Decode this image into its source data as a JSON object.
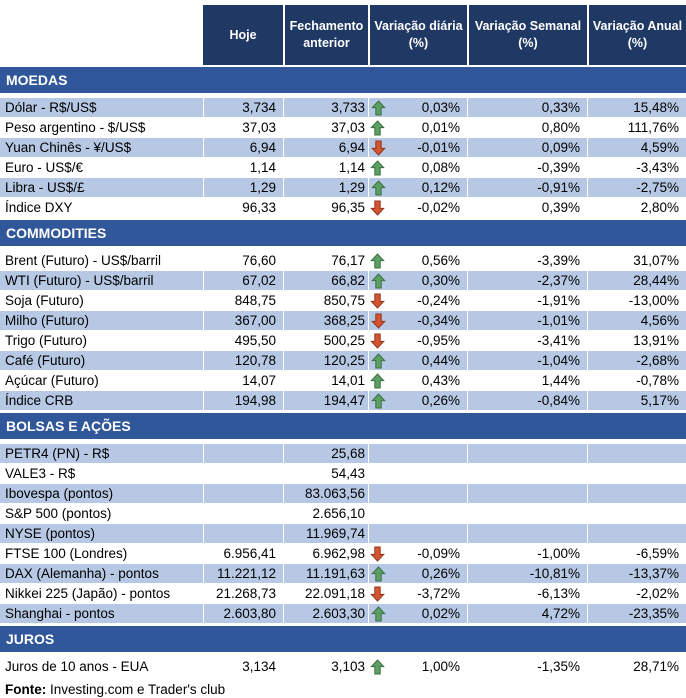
{
  "columns": [
    "Hoje",
    "Fechamento anterior",
    "Variação diária (%)",
    "Variação Semanal (%)",
    "Variação Anual (%)"
  ],
  "sections": [
    {
      "title": "MOEDAS",
      "rows": [
        {
          "label": "Dólar - R$/US$",
          "hoje": "3,734",
          "fech": "3,733",
          "arrow": "up",
          "vd": "0,03%",
          "vs": "0,33%",
          "va": "15,48%",
          "shaded": true
        },
        {
          "label": "Peso argentino - $/US$",
          "hoje": "37,03",
          "fech": "37,03",
          "arrow": "up",
          "vd": "0,01%",
          "vs": "0,80%",
          "va": "111,76%",
          "shaded": false
        },
        {
          "label": "Yuan Chinês - ¥/US$",
          "hoje": "6,94",
          "fech": "6,94",
          "arrow": "down",
          "vd": "-0,01%",
          "vs": "0,09%",
          "va": "4,59%",
          "shaded": true
        },
        {
          "label": "Euro - US$/€",
          "hoje": "1,14",
          "fech": "1,14",
          "arrow": "up",
          "vd": "0,08%",
          "vs": "-0,39%",
          "va": "-3,43%",
          "shaded": false
        },
        {
          "label": "Libra - US$/£",
          "hoje": "1,29",
          "fech": "1,29",
          "arrow": "up",
          "vd": "0,12%",
          "vs": "-0,91%",
          "va": "-2,75%",
          "shaded": true
        },
        {
          "label": "Índice DXY",
          "hoje": "96,33",
          "fech": "96,35",
          "arrow": "down",
          "vd": "-0,02%",
          "vs": "0,39%",
          "va": "2,80%",
          "shaded": false
        }
      ]
    },
    {
      "title": "COMMODITIES",
      "rows": [
        {
          "label": "Brent (Futuro) - US$/barril",
          "hoje": "76,60",
          "fech": "76,17",
          "arrow": "up",
          "vd": "0,56%",
          "vs": "-3,39%",
          "va": "31,07%",
          "shaded": false
        },
        {
          "label": "WTI (Futuro) - US$/barril",
          "hoje": "67,02",
          "fech": "66,82",
          "arrow": "up",
          "vd": "0,30%",
          "vs": "-2,37%",
          "va": "28,44%",
          "shaded": true
        },
        {
          "label": "Soja (Futuro)",
          "hoje": "848,75",
          "fech": "850,75",
          "arrow": "down",
          "vd": "-0,24%",
          "vs": "-1,91%",
          "va": "-13,00%",
          "shaded": false
        },
        {
          "label": "Milho (Futuro)",
          "hoje": "367,00",
          "fech": "368,25",
          "arrow": "down",
          "vd": "-0,34%",
          "vs": "-1,01%",
          "va": "4,56%",
          "shaded": true
        },
        {
          "label": "Trigo (Futuro)",
          "hoje": "495,50",
          "fech": "500,25",
          "arrow": "down",
          "vd": "-0,95%",
          "vs": "-3,41%",
          "va": "13,91%",
          "shaded": false
        },
        {
          "label": "Café (Futuro)",
          "hoje": "120,78",
          "fech": "120,25",
          "arrow": "up",
          "vd": "0,44%",
          "vs": "-1,04%",
          "va": "-2,68%",
          "shaded": true
        },
        {
          "label": "Açúcar (Futuro)",
          "hoje": "14,07",
          "fech": "14,01",
          "arrow": "up",
          "vd": "0,43%",
          "vs": "1,44%",
          "va": "-0,78%",
          "shaded": false
        },
        {
          "label": "Índice CRB",
          "hoje": "194,98",
          "fech": "194,47",
          "arrow": "up",
          "vd": "0,26%",
          "vs": "-0,84%",
          "va": "5,17%",
          "shaded": true
        }
      ]
    },
    {
      "title": "BOLSAS E AÇÕES",
      "rows": [
        {
          "label": "PETR4 (PN) - R$",
          "hoje": "",
          "fech": "25,68",
          "arrow": "",
          "vd": "",
          "vs": "",
          "va": "",
          "shaded": true
        },
        {
          "label": "VALE3 - R$",
          "hoje": "",
          "fech": "54,43",
          "arrow": "",
          "vd": "",
          "vs": "",
          "va": "",
          "shaded": false
        },
        {
          "label": "Ibovespa (pontos)",
          "hoje": "",
          "fech": "83.063,56",
          "arrow": "",
          "vd": "",
          "vs": "",
          "va": "",
          "shaded": true
        },
        {
          "label": "S&P 500 (pontos)",
          "hoje": "",
          "fech": "2.656,10",
          "arrow": "",
          "vd": "",
          "vs": "",
          "va": "",
          "shaded": false
        },
        {
          "label": "NYSE (pontos)",
          "hoje": "",
          "fech": "11.969,74",
          "arrow": "",
          "vd": "",
          "vs": "",
          "va": "",
          "shaded": true
        },
        {
          "label": "FTSE 100 (Londres)",
          "hoje": "6.956,41",
          "fech": "6.962,98",
          "arrow": "down",
          "vd": "-0,09%",
          "vs": "-1,00%",
          "va": "-6,59%",
          "shaded": false
        },
        {
          "label": "DAX (Alemanha) - pontos",
          "hoje": "11.221,12",
          "fech": "11.191,63",
          "arrow": "up",
          "vd": "0,26%",
          "vs": "-10,81%",
          "va": "-13,37%",
          "shaded": true
        },
        {
          "label": "Nikkei 225 (Japão) - pontos",
          "hoje": "21.268,73",
          "fech": "22.091,18",
          "arrow": "down",
          "vd": "-3,72%",
          "vs": "-6,13%",
          "va": "-2,02%",
          "shaded": false
        },
        {
          "label": "Shanghai - pontos",
          "hoje": "2.603,80",
          "fech": "2.603,30",
          "arrow": "up",
          "vd": "0,02%",
          "vs": "4,72%",
          "va": "-23,35%",
          "shaded": true
        }
      ]
    },
    {
      "title": "JUROS",
      "rows": [
        {
          "label": "Juros de 10 anos - EUA",
          "hoje": "3,134",
          "fech": "3,103",
          "arrow": "up",
          "vd": "1,00%",
          "vs": "-1,35%",
          "va": "28,71%",
          "shaded": false
        }
      ]
    }
  ],
  "footer": {
    "label": "Fonte:",
    "text": " Investing.com e Trader's club"
  },
  "colors": {
    "header_bg": "#1F3864",
    "section_bg": "#31579B",
    "row_shaded_bg": "#B6C8E4",
    "arrow_up_fill": "#5D9E63",
    "arrow_up_stroke": "#3A7042",
    "arrow_down_fill": "#D4542F",
    "arrow_down_stroke": "#92351D"
  }
}
